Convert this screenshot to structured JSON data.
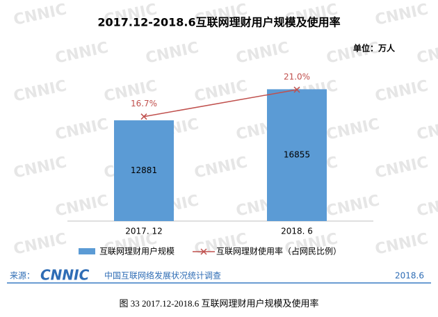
{
  "chart_data": {
    "type": "bar_line",
    "title": "2017.12-2018.6互联网理财用户规模及使用率",
    "unit": "单位：万人",
    "watermark": "CNNIC",
    "categories": [
      "2017. 12",
      "2018. 6"
    ],
    "series": [
      {
        "name": "互联网理财用户规模",
        "color": "#5b9bd5",
        "type": "bar",
        "values": [
          12881,
          16855
        ]
      },
      {
        "name": "互联网理财使用率（占网民比例）",
        "color": "#c0504d",
        "type": "line",
        "axis": "y2",
        "values": [
          16.7,
          21.0
        ],
        "value_labels": [
          "16.7%",
          "21.0%"
        ]
      }
    ],
    "ylim": [
      0,
      20000
    ],
    "y2lim": [
      0,
      25
    ]
  },
  "footer": {
    "source_label": "来源：",
    "logo": "CNNIC",
    "survey": "中国互联网络发展状况统计调查",
    "date": "2018.6"
  },
  "caption": "图 33    2017.12-2018.6 互联网理财用户规模及使用率"
}
